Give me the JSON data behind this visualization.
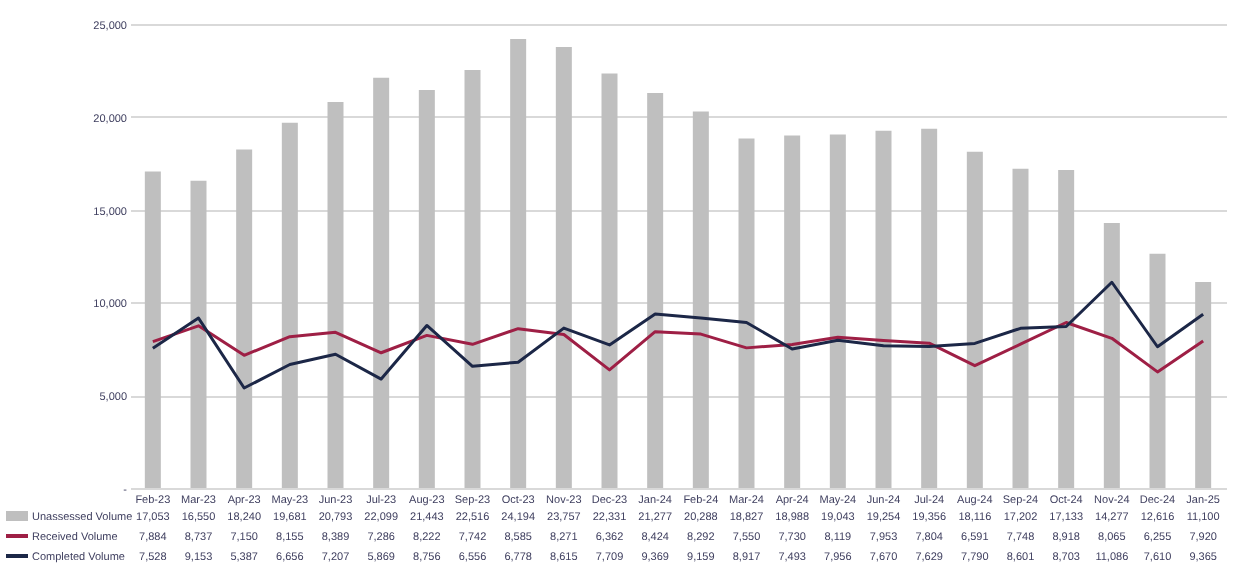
{
  "chart_data": {
    "type": "bar",
    "categories": [
      "Feb-23",
      "Mar-23",
      "Apr-23",
      "May-23",
      "Jun-23",
      "Jul-23",
      "Aug-23",
      "Sep-23",
      "Oct-23",
      "Nov-23",
      "Dec-23",
      "Jan-24",
      "Feb-24",
      "Mar-24",
      "Apr-24",
      "May-24",
      "Jun-24",
      "Jul-24",
      "Aug-24",
      "Sep-24",
      "Oct-24",
      "Nov-24",
      "Dec-24",
      "Jan-25"
    ],
    "series": [
      {
        "name": "Unassessed Volume",
        "color": "#bfbfbf",
        "values": [
          17053,
          16550,
          18240,
          19681,
          20793,
          22099,
          21443,
          22516,
          24194,
          23757,
          22331,
          21277,
          20288,
          18827,
          18988,
          19043,
          19254,
          19356,
          18116,
          17202,
          17133,
          14277,
          12616,
          11100
        ],
        "value_labels": [
          "17,053",
          "16,550",
          "18,240",
          "19,681",
          "20,793",
          "22,099",
          "21,443",
          "22,516",
          "24,194",
          "23,757",
          "22,331",
          "21,277",
          "20,288",
          "18,827",
          "18,988",
          "19,043",
          "19,254",
          "19,356",
          "18,116",
          "17,202",
          "17,133",
          "14,277",
          "12,616",
          "11,100"
        ]
      },
      {
        "name": "Received Volume",
        "type": "line",
        "color": "#9e1f45",
        "values": [
          7884,
          8737,
          7150,
          8155,
          8389,
          7286,
          8222,
          7742,
          8585,
          8271,
          6362,
          8424,
          8292,
          7550,
          7730,
          8119,
          7953,
          7804,
          6591,
          7748,
          8918,
          8065,
          6255,
          7920
        ],
        "value_labels": [
          "7,884",
          "8,737",
          "7,150",
          "8,155",
          "8,389",
          "7,286",
          "8,222",
          "7,742",
          "8,585",
          "8,271",
          "6,362",
          "8,424",
          "8,292",
          "7,550",
          "7,730",
          "8,119",
          "7,953",
          "7,804",
          "6,591",
          "7,748",
          "8,918",
          "8,065",
          "6,255",
          "7,920"
        ]
      },
      {
        "name": "Completed Volume",
        "type": "line",
        "color": "#1c2747",
        "values": [
          7528,
          9153,
          5387,
          6656,
          7207,
          5869,
          8756,
          6556,
          6778,
          8615,
          7709,
          9369,
          9159,
          8917,
          7493,
          7956,
          7670,
          7629,
          7790,
          8601,
          8703,
          11086,
          7610,
          9365
        ],
        "value_labels": [
          "7,528",
          "9,153",
          "5,387",
          "6,656",
          "7,207",
          "5,869",
          "8,756",
          "6,556",
          "6,778",
          "8,615",
          "7,709",
          "9,369",
          "9,159",
          "8,917",
          "7,493",
          "7,956",
          "7,670",
          "7,629",
          "7,790",
          "8,601",
          "8,703",
          "11,086",
          "7,610",
          "9,365"
        ]
      }
    ],
    "ylim": [
      0,
      25000
    ],
    "yticks": [
      {
        "value": 0,
        "label": "-"
      },
      {
        "value": 5000,
        "label": "5,000"
      },
      {
        "value": 10000,
        "label": "10,000"
      },
      {
        "value": 15000,
        "label": "15,000"
      },
      {
        "value": 20000,
        "label": "20,000"
      },
      {
        "value": 25000,
        "label": "25,000"
      }
    ],
    "grid": "y",
    "legend": "bottom"
  }
}
